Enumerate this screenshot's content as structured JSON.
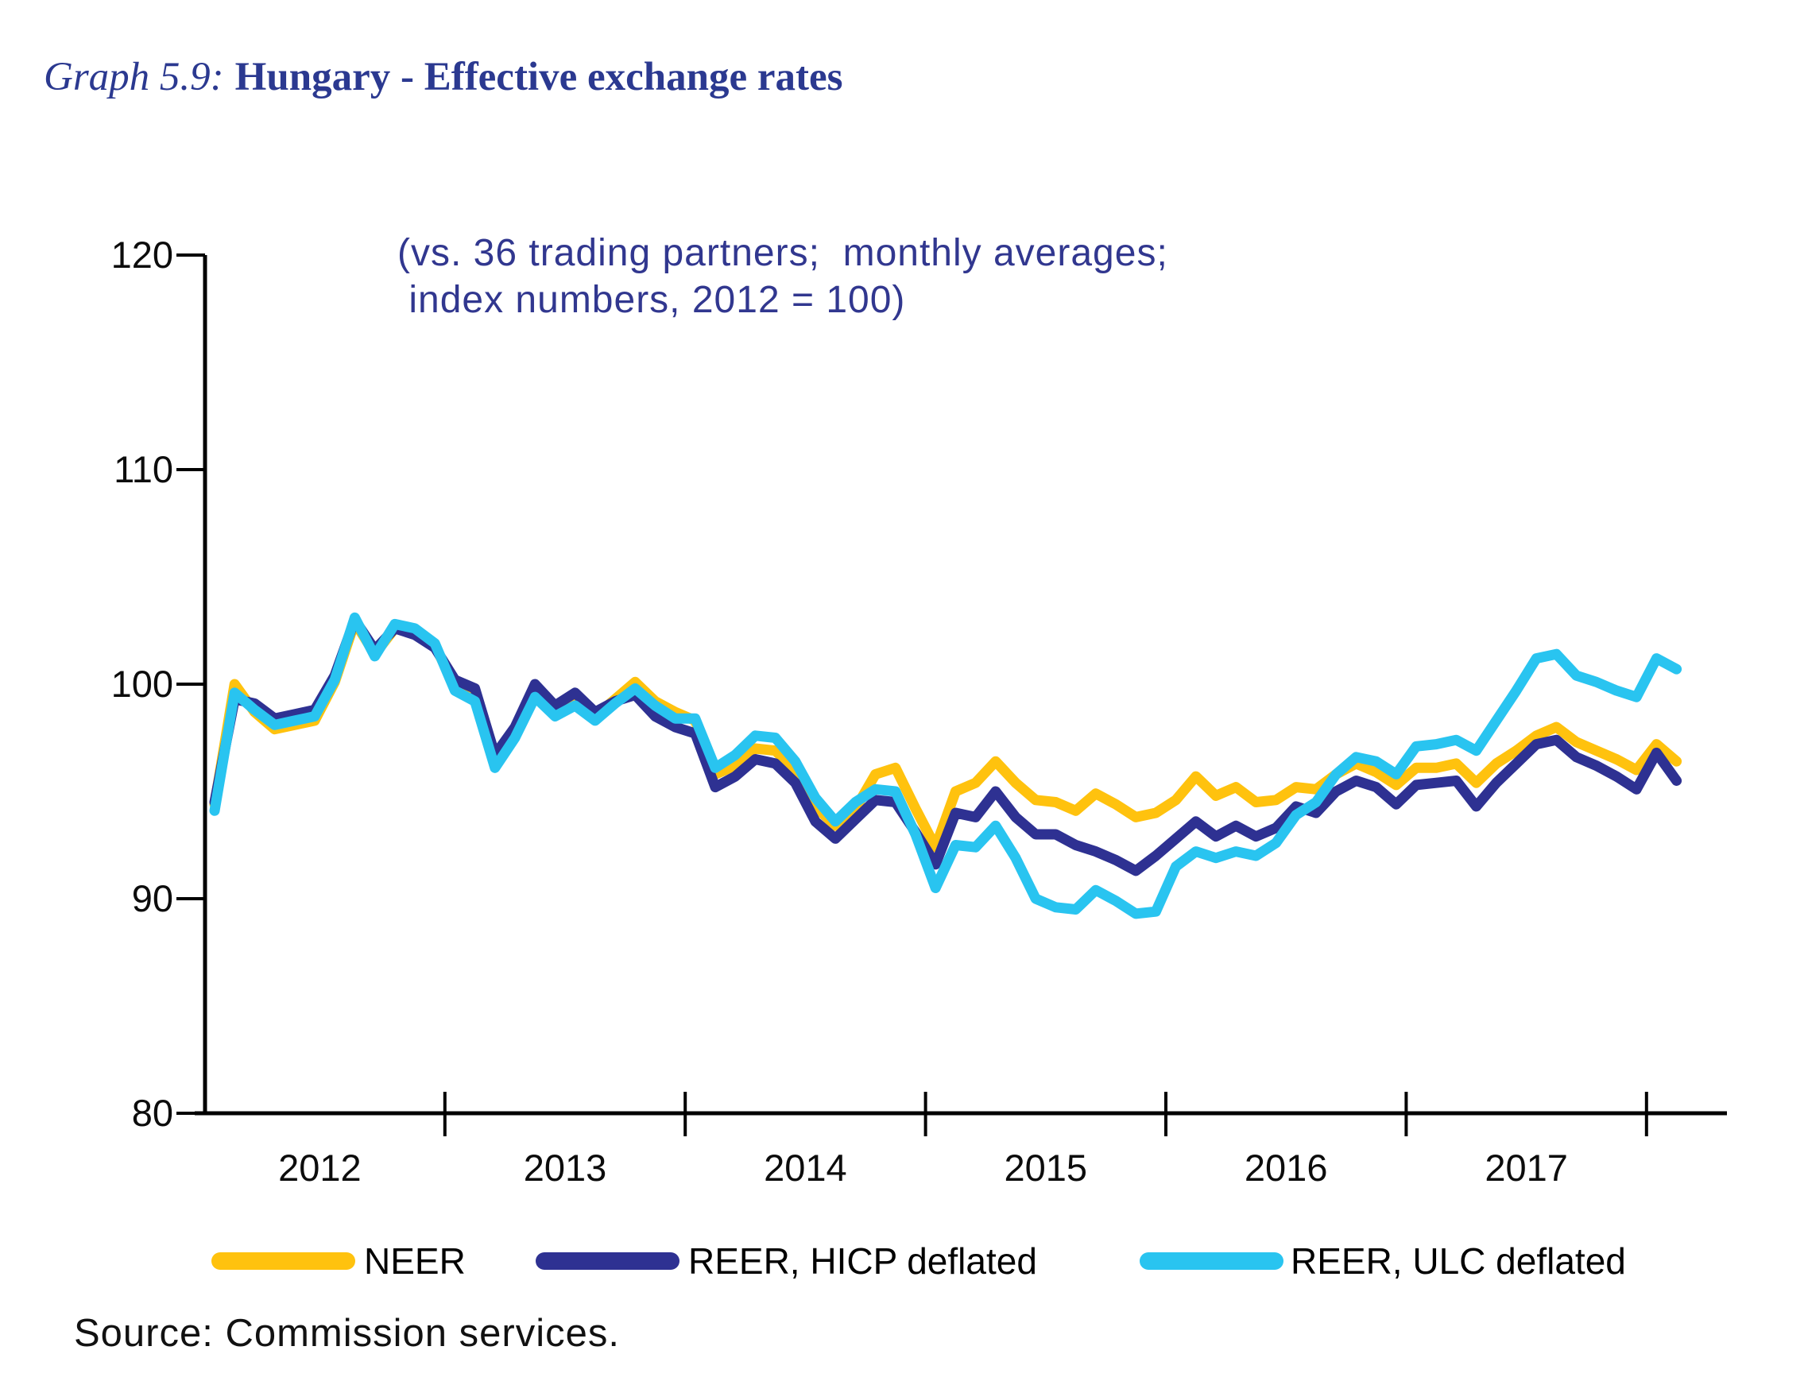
{
  "header": {
    "title_prefix": "Graph 5.9:",
    "title_main": "Hungary - Effective exchange rates"
  },
  "chart_data": {
    "type": "line",
    "title": "Hungary - Effective exchange rates",
    "subtitle": "(vs. 36 trading partners;  monthly averages;\n index numbers, 2012 = 100)",
    "x_unit": "month",
    "x_start": "2012-01",
    "x_end": "2018-02",
    "x_tick_years": [
      "2012",
      "2013",
      "2014",
      "2015",
      "2016",
      "2017"
    ],
    "ylim": [
      80,
      120
    ],
    "y_ticks": [
      80,
      90,
      100,
      110,
      120
    ],
    "grid": false,
    "legend_position": "bottom",
    "axis_color": "#000000",
    "series": [
      {
        "name": "NEER",
        "color": "#FFC20E",
        "values": [
          94.4,
          100.0,
          98.7,
          97.9,
          98.1,
          98.3,
          100.1,
          102.9,
          101.4,
          102.6,
          102.4,
          101.8,
          99.9,
          99.4,
          96.4,
          97.7,
          99.7,
          98.8,
          99.3,
          98.5,
          99.3,
          100.1,
          99.2,
          98.7,
          98.3,
          95.8,
          96.2,
          97.0,
          96.9,
          96.0,
          94.3,
          93.4,
          94.2,
          95.8,
          96.1,
          94.2,
          92.4,
          95.0,
          95.4,
          96.4,
          95.4,
          94.6,
          94.5,
          94.1,
          94.9,
          94.4,
          93.8,
          94.0,
          94.6,
          95.7,
          94.8,
          95.2,
          94.5,
          94.6,
          95.2,
          95.1,
          95.8,
          96.3,
          95.9,
          95.3,
          96.1,
          96.1,
          96.3,
          95.4,
          96.3,
          96.9,
          97.6,
          98.0,
          97.3,
          96.9,
          96.5,
          96.0,
          97.2,
          96.4
        ]
      },
      {
        "name": "REER, HICP deflated",
        "color": "#2E3192",
        "values": [
          94.5,
          99.3,
          99.1,
          98.4,
          98.6,
          98.8,
          100.4,
          103.0,
          101.6,
          102.6,
          102.3,
          101.7,
          100.2,
          99.8,
          96.7,
          98.0,
          100.0,
          99.0,
          99.6,
          98.7,
          99.2,
          99.5,
          98.5,
          98.0,
          97.7,
          95.2,
          95.7,
          96.5,
          96.3,
          95.4,
          93.6,
          92.8,
          93.7,
          94.6,
          94.5,
          93.1,
          91.6,
          94.0,
          93.8,
          95.0,
          93.8,
          93.0,
          93.0,
          92.5,
          92.2,
          91.8,
          91.3,
          92.0,
          92.8,
          93.6,
          92.9,
          93.4,
          92.9,
          93.3,
          94.3,
          94.0,
          95.0,
          95.5,
          95.2,
          94.4,
          95.3,
          95.4,
          95.5,
          94.3,
          95.4,
          96.3,
          97.2,
          97.4,
          96.6,
          96.2,
          95.7,
          95.1,
          96.8,
          95.5
        ]
      },
      {
        "name": "REER, ULC deflated",
        "color": "#29C4F0",
        "values": [
          94.1,
          99.6,
          98.8,
          98.1,
          98.3,
          98.5,
          100.2,
          103.1,
          101.3,
          102.8,
          102.6,
          101.9,
          99.7,
          99.2,
          96.1,
          97.5,
          99.4,
          98.5,
          99.0,
          98.3,
          99.1,
          99.8,
          99.0,
          98.4,
          98.4,
          96.1,
          96.7,
          97.6,
          97.5,
          96.4,
          94.7,
          93.6,
          94.5,
          95.1,
          95.0,
          93.0,
          90.5,
          92.5,
          92.4,
          93.4,
          91.9,
          90.0,
          89.6,
          89.5,
          90.4,
          89.9,
          89.3,
          89.4,
          91.5,
          92.2,
          91.9,
          92.2,
          92.0,
          92.6,
          93.9,
          94.5,
          95.8,
          96.6,
          96.4,
          95.8,
          97.1,
          97.2,
          97.4,
          96.9,
          98.3,
          99.7,
          101.2,
          101.4,
          100.4,
          100.1,
          99.7,
          99.4,
          101.2,
          100.7
        ]
      }
    ]
  },
  "legend": {
    "items": [
      {
        "label": "NEER",
        "color": "#FFC20E"
      },
      {
        "label": "REER, HICP deflated",
        "color": "#2E3192"
      },
      {
        "label": "REER, ULC deflated",
        "color": "#29C4F0"
      }
    ]
  },
  "source": "Source: Commission services."
}
